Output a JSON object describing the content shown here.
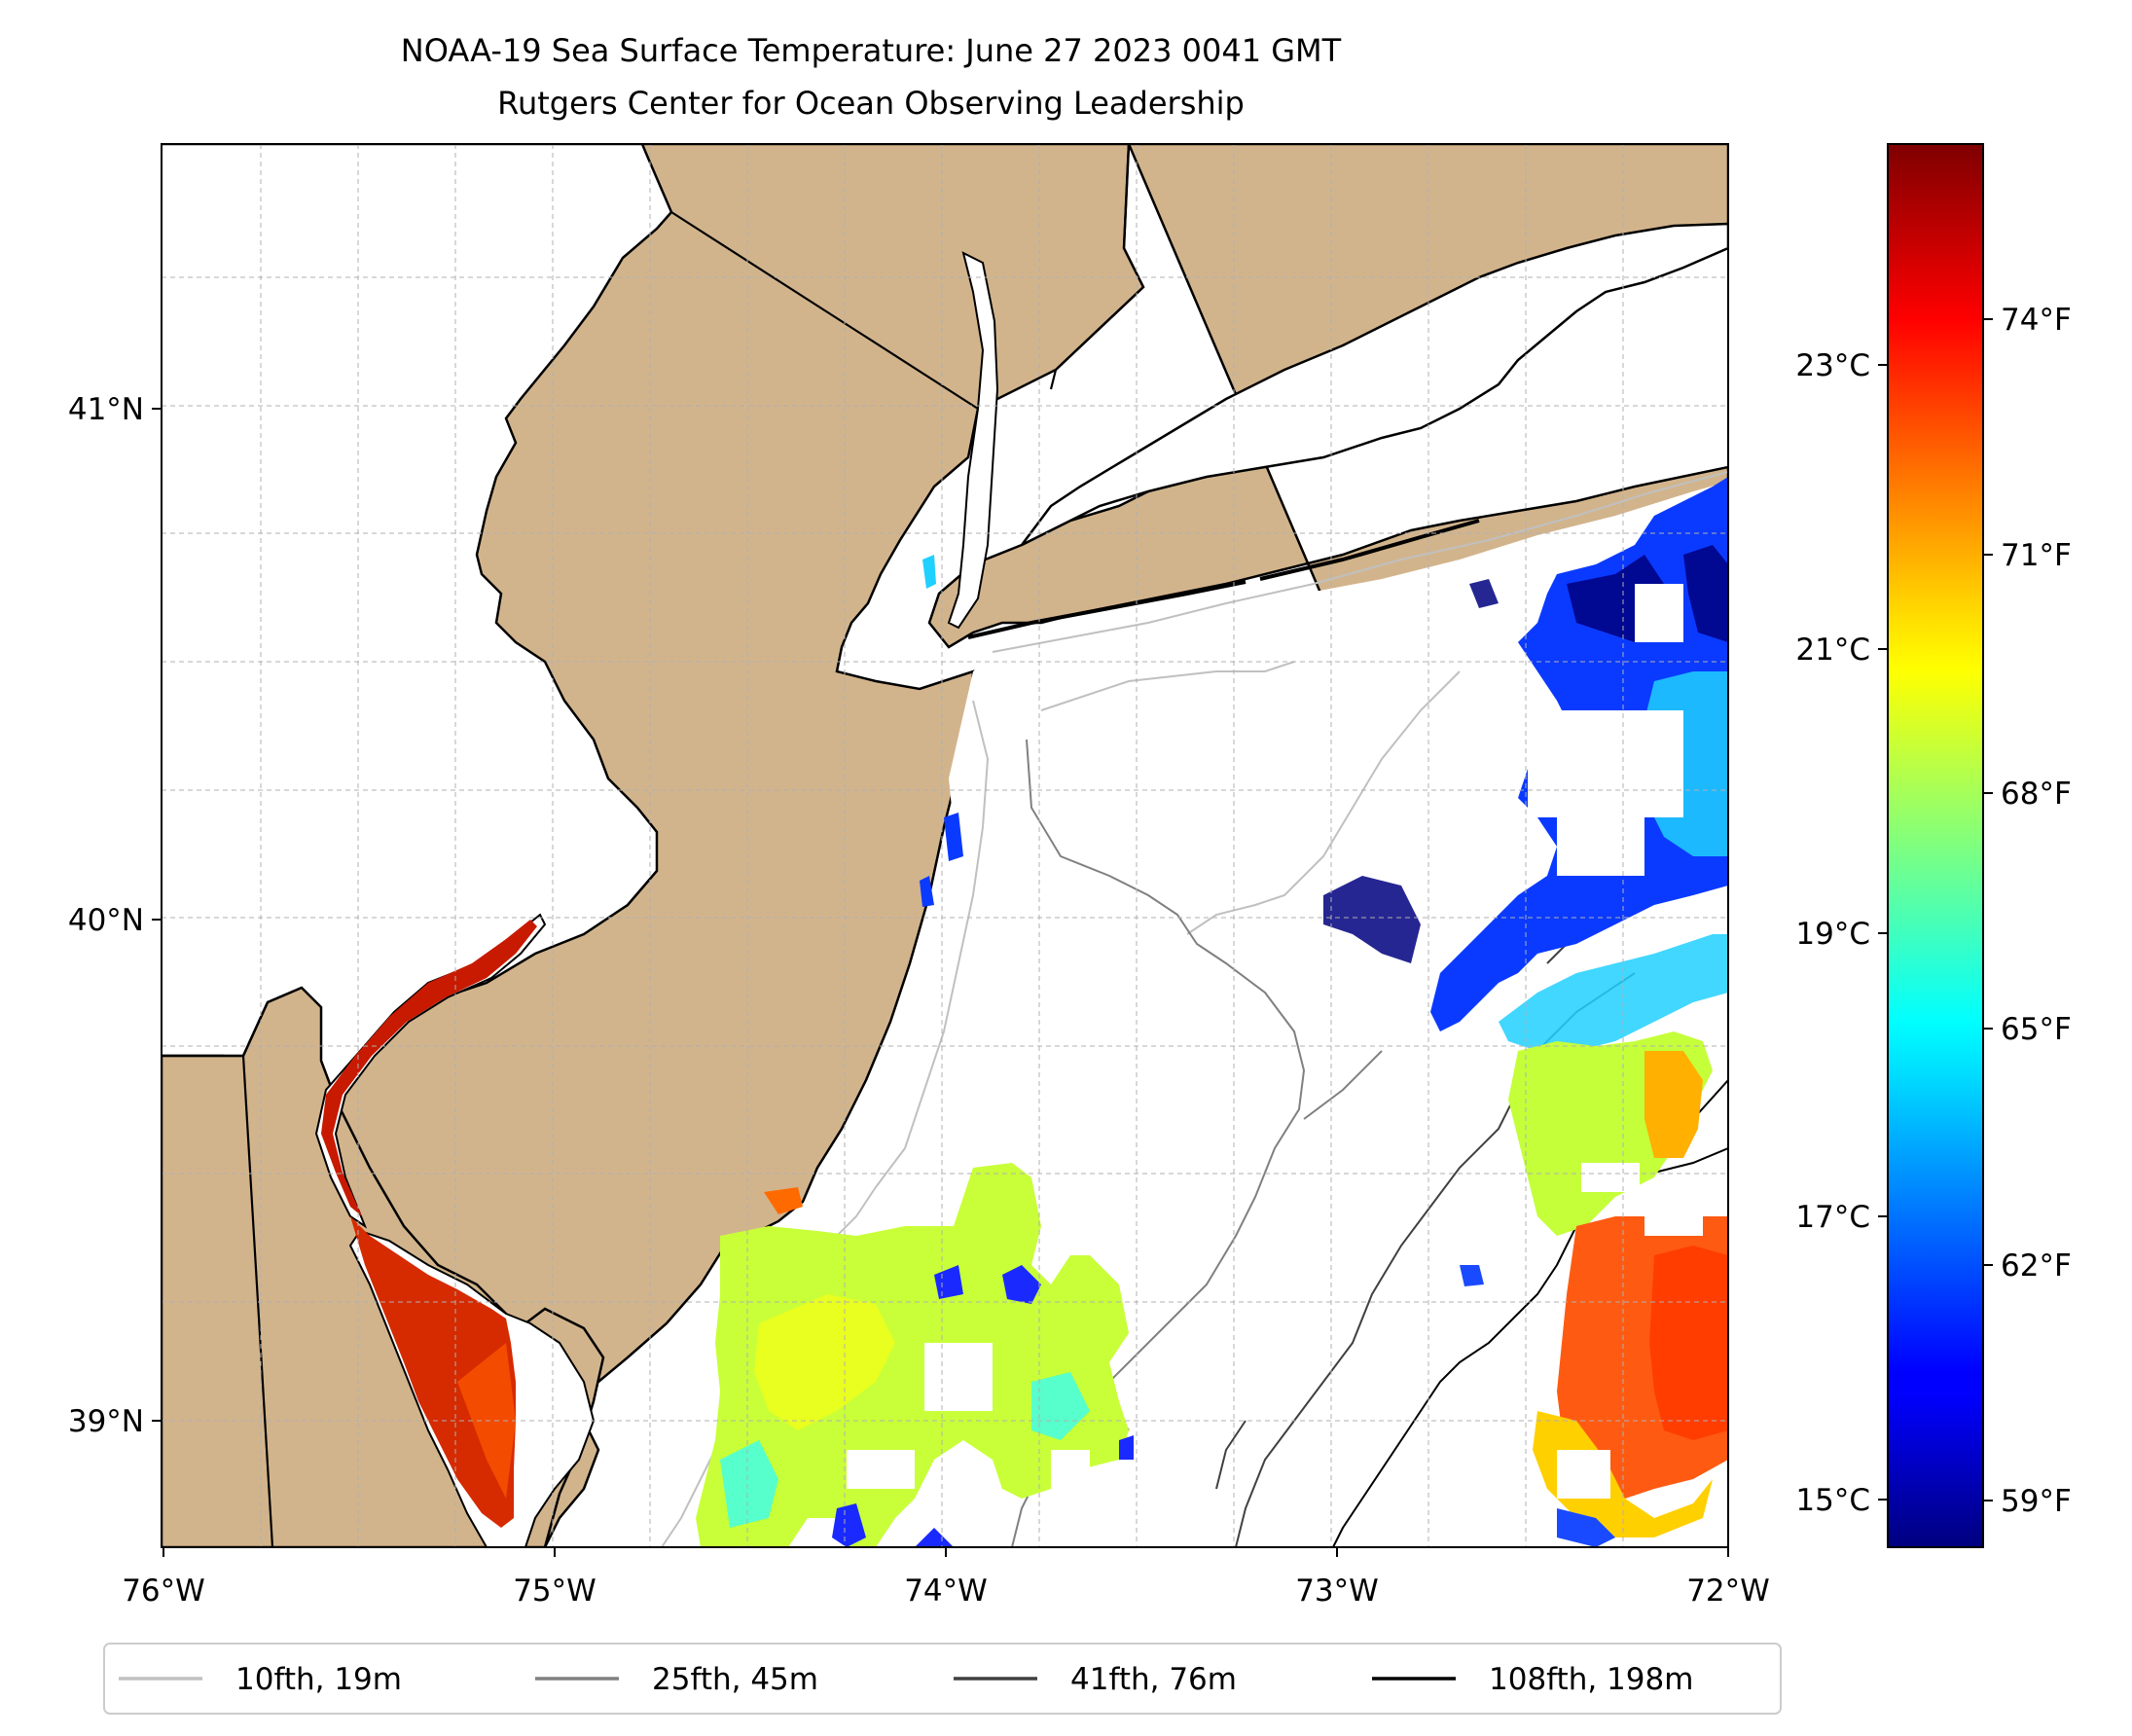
{
  "title": "NOAA-19 Sea Surface Temperature: June 27 2023 0041 GMT",
  "subtitle": "Rutgers Center for Ocean Observing Leadership",
  "map": {
    "lon_ticks": [
      "76°W",
      "75°W",
      "74°W",
      "73°W",
      "72°W"
    ],
    "lat_ticks": [
      "41°N",
      "40°N",
      "39°N"
    ],
    "land_color": "#d2b48c",
    "ocean_color": "#ffffff"
  },
  "colorbar": {
    "celsius_labels": [
      "23°C",
      "21°C",
      "19°C",
      "17°C",
      "15°C"
    ],
    "fahrenheit_labels": [
      "74°F",
      "71°F",
      "68°F",
      "65°F",
      "62°F",
      "59°F"
    ],
    "colormap": "jet"
  },
  "legend": {
    "items": [
      {
        "label": "10fth, 19m",
        "color": "#c0c0c0"
      },
      {
        "label": "25fth, 45m",
        "color": "#808080"
      },
      {
        "label": "41fth, 76m",
        "color": "#404040"
      },
      {
        "label": "108fth, 198m",
        "color": "#000000"
      }
    ]
  }
}
